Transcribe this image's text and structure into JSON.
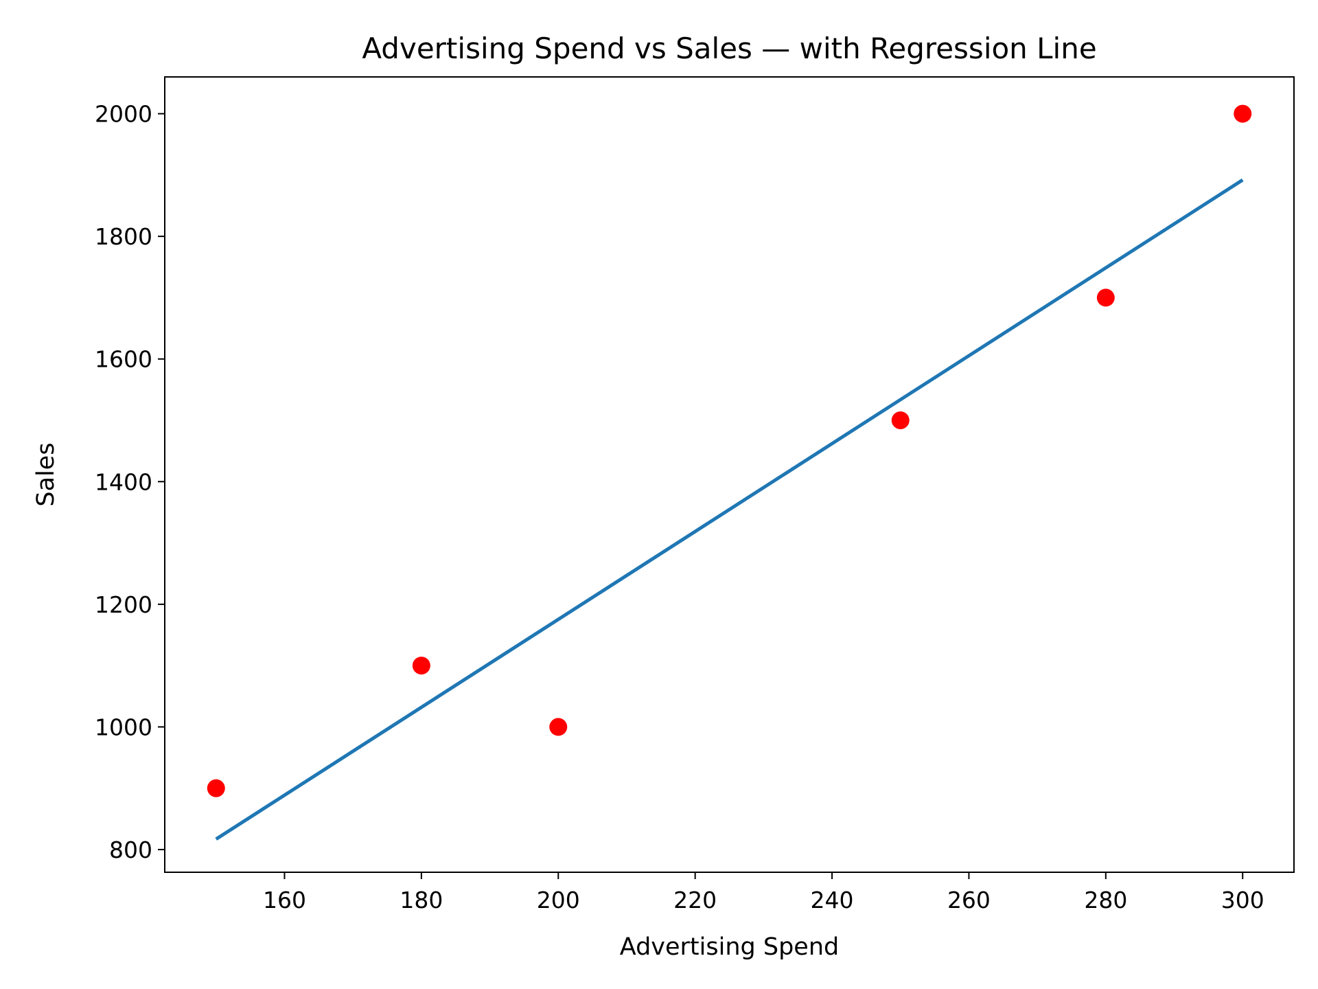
{
  "chart_data": {
    "type": "scatter",
    "title": "Advertising Spend vs Sales — with Regression Line",
    "xlabel": "Advertising Spend",
    "ylabel": "Sales",
    "xlim": [
      142.5,
      307.5
    ],
    "ylim": [
      763,
      2060
    ],
    "xticks": [
      160,
      180,
      200,
      220,
      240,
      260,
      280,
      300
    ],
    "yticks": [
      800,
      1000,
      1200,
      1400,
      1600,
      1800,
      2000
    ],
    "grid": false,
    "legend": "none",
    "points": [
      {
        "x": 150,
        "y": 900
      },
      {
        "x": 180,
        "y": 1100
      },
      {
        "x": 200,
        "y": 1000
      },
      {
        "x": 250,
        "y": 1500
      },
      {
        "x": 280,
        "y": 1700
      },
      {
        "x": 300,
        "y": 2000
      }
    ],
    "regression": {
      "x": [
        150,
        300
      ],
      "y": [
        817,
        1892
      ]
    },
    "colors": {
      "points": "#ff0000",
      "line": "#1f77b4",
      "axes": "#000000"
    }
  }
}
